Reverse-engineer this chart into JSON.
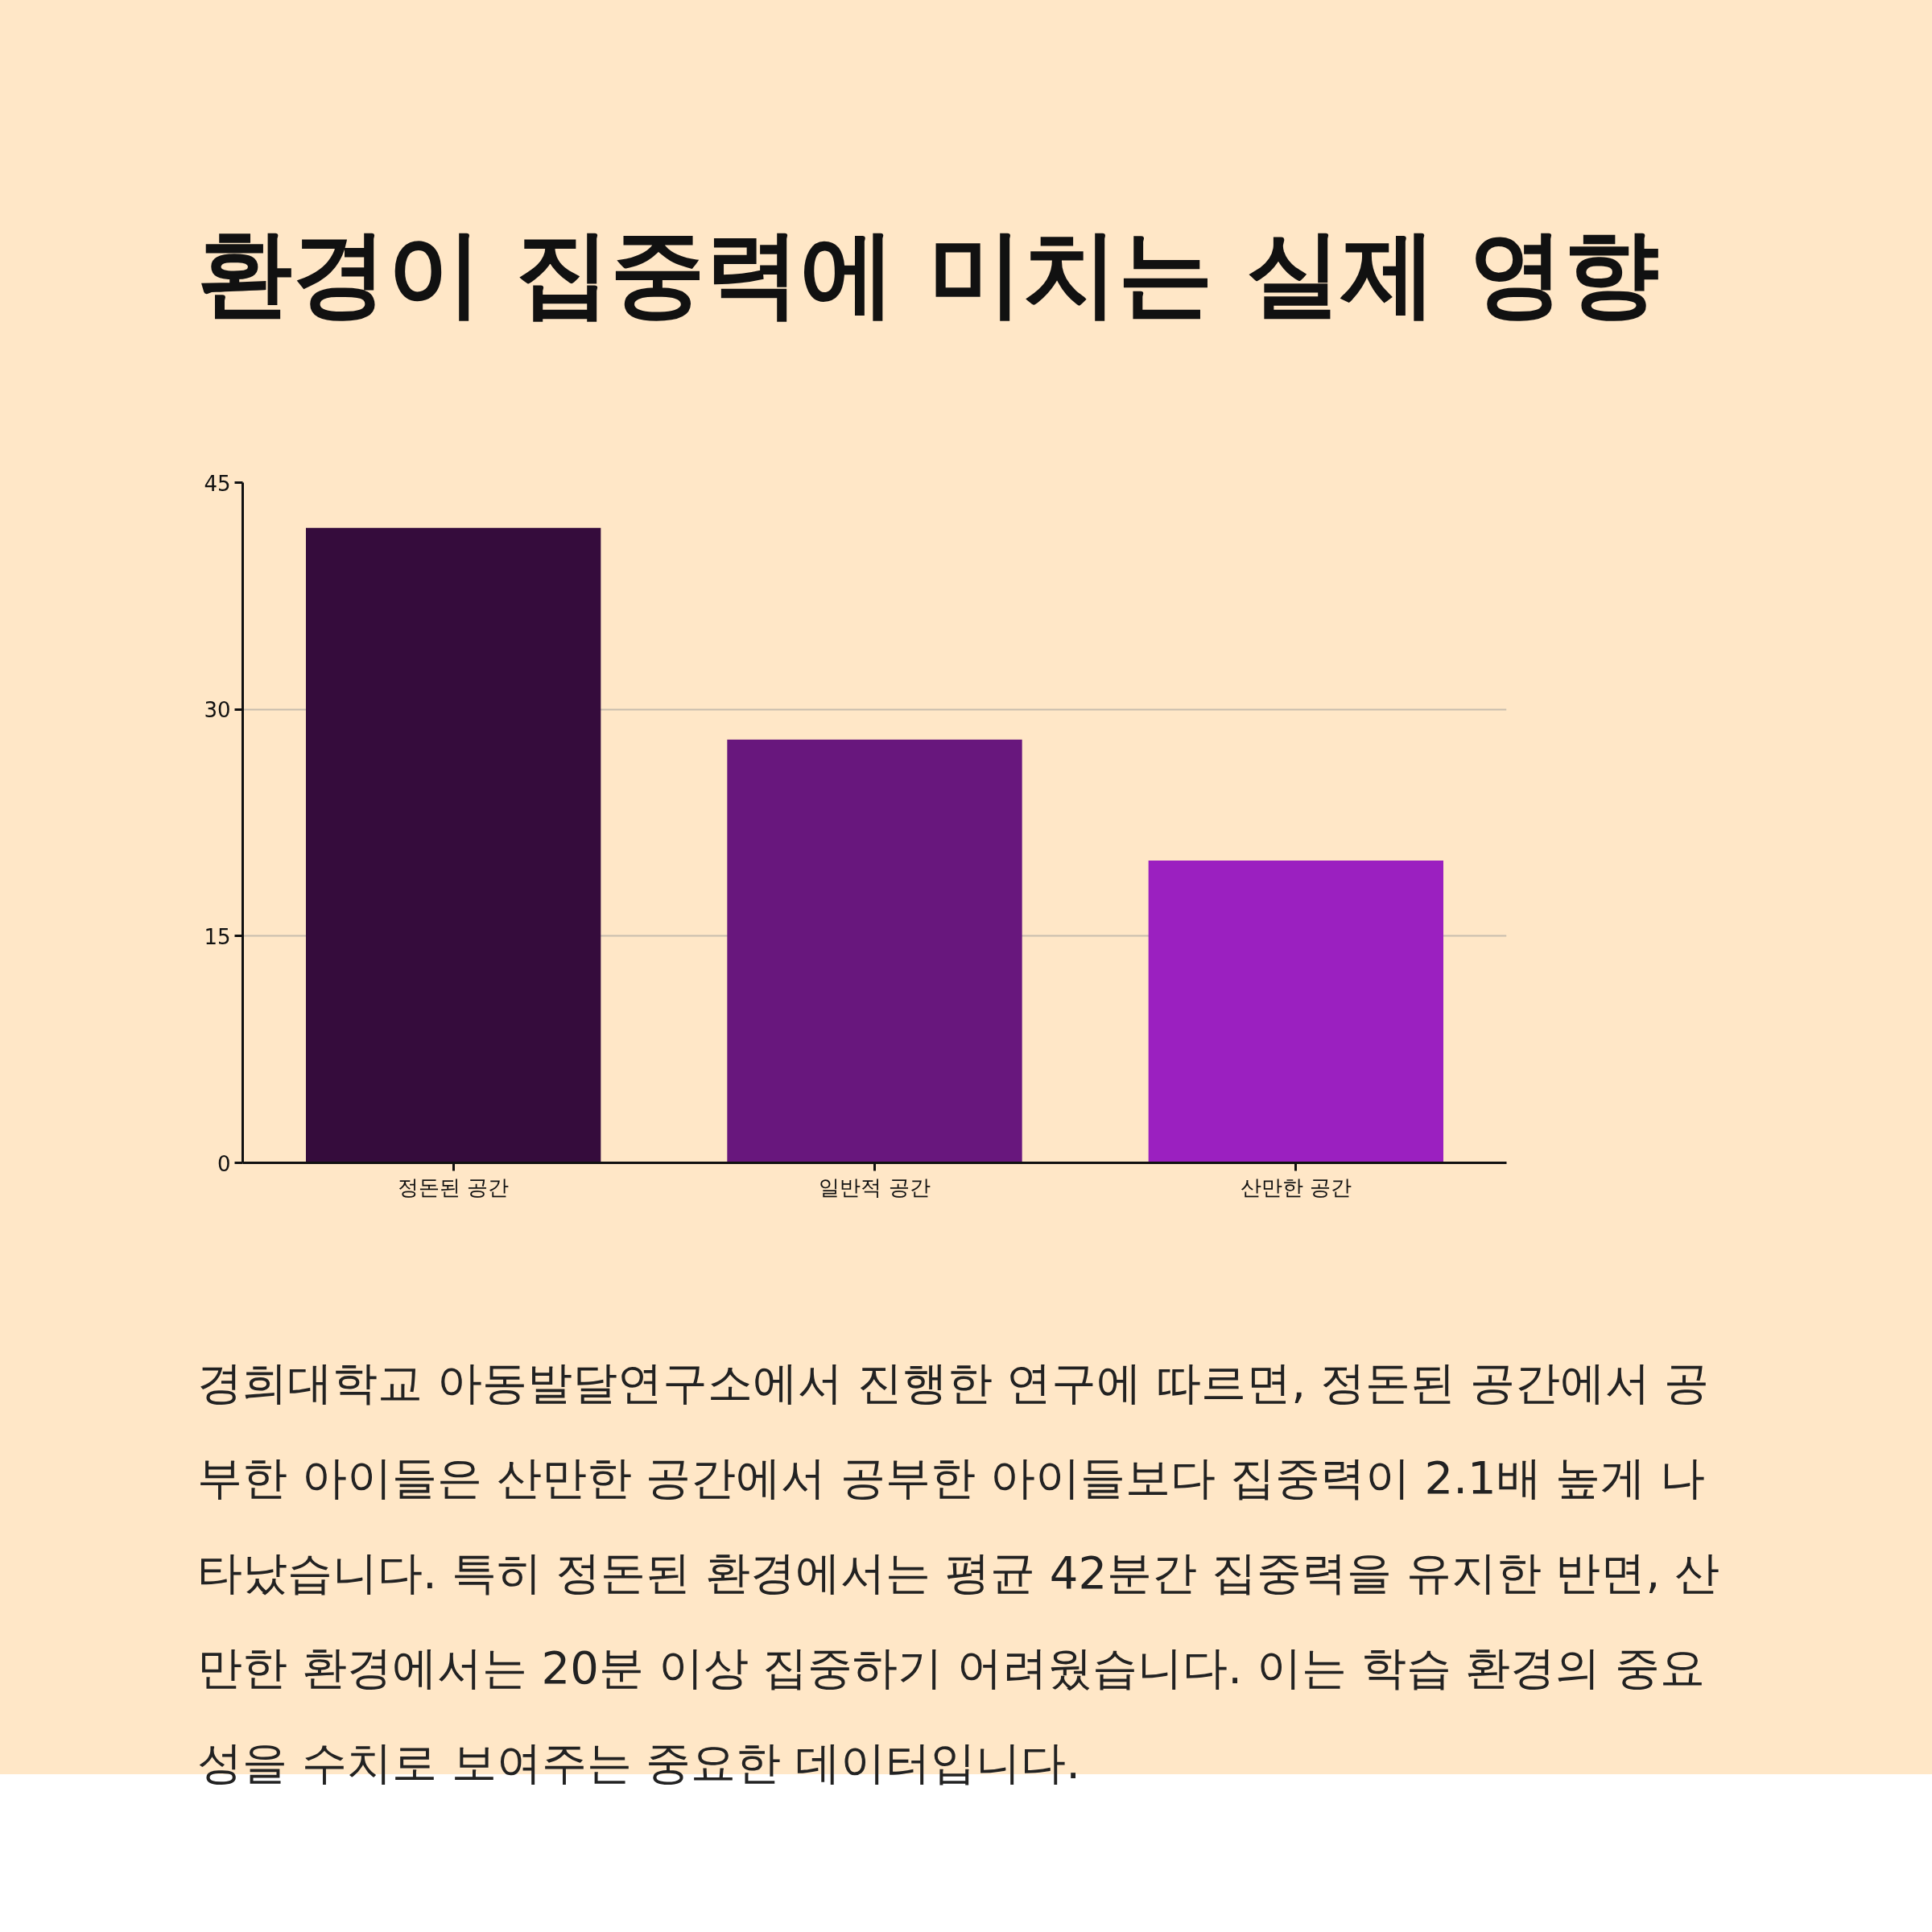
{
  "chart_data": {
    "type": "bar",
    "title": "환경이 집중력에 미치는 실제 영향",
    "categories": [
      "정돈된 공간",
      "일반적 공간",
      "산만한 공간"
    ],
    "values": [
      42,
      28,
      20
    ],
    "colors": [
      "#350c3c",
      "#68177d",
      "#9b20c0"
    ],
    "ylim": [
      0,
      45
    ],
    "yticks": [
      0,
      15,
      30,
      45
    ],
    "grid": "y",
    "annotations": [
      "경희대학교 아동발달연구소에서 진행한 연구에 따르면, 정돈된 공간에서 공부한 아이들은 산만한 공간에서 공부한 아이들보다 집중력이 2.1배 높게 나타났습니다. 특히 정돈된 환경에서는 평균 42분간 집중력을 유지한 반면, 산만한 환경에서는 20분 이상 집중하기 어려웠습니다. 이는 학습 환경의 중요성을 수치로 보여주는 중요한 데이터입니다."
    ]
  }
}
